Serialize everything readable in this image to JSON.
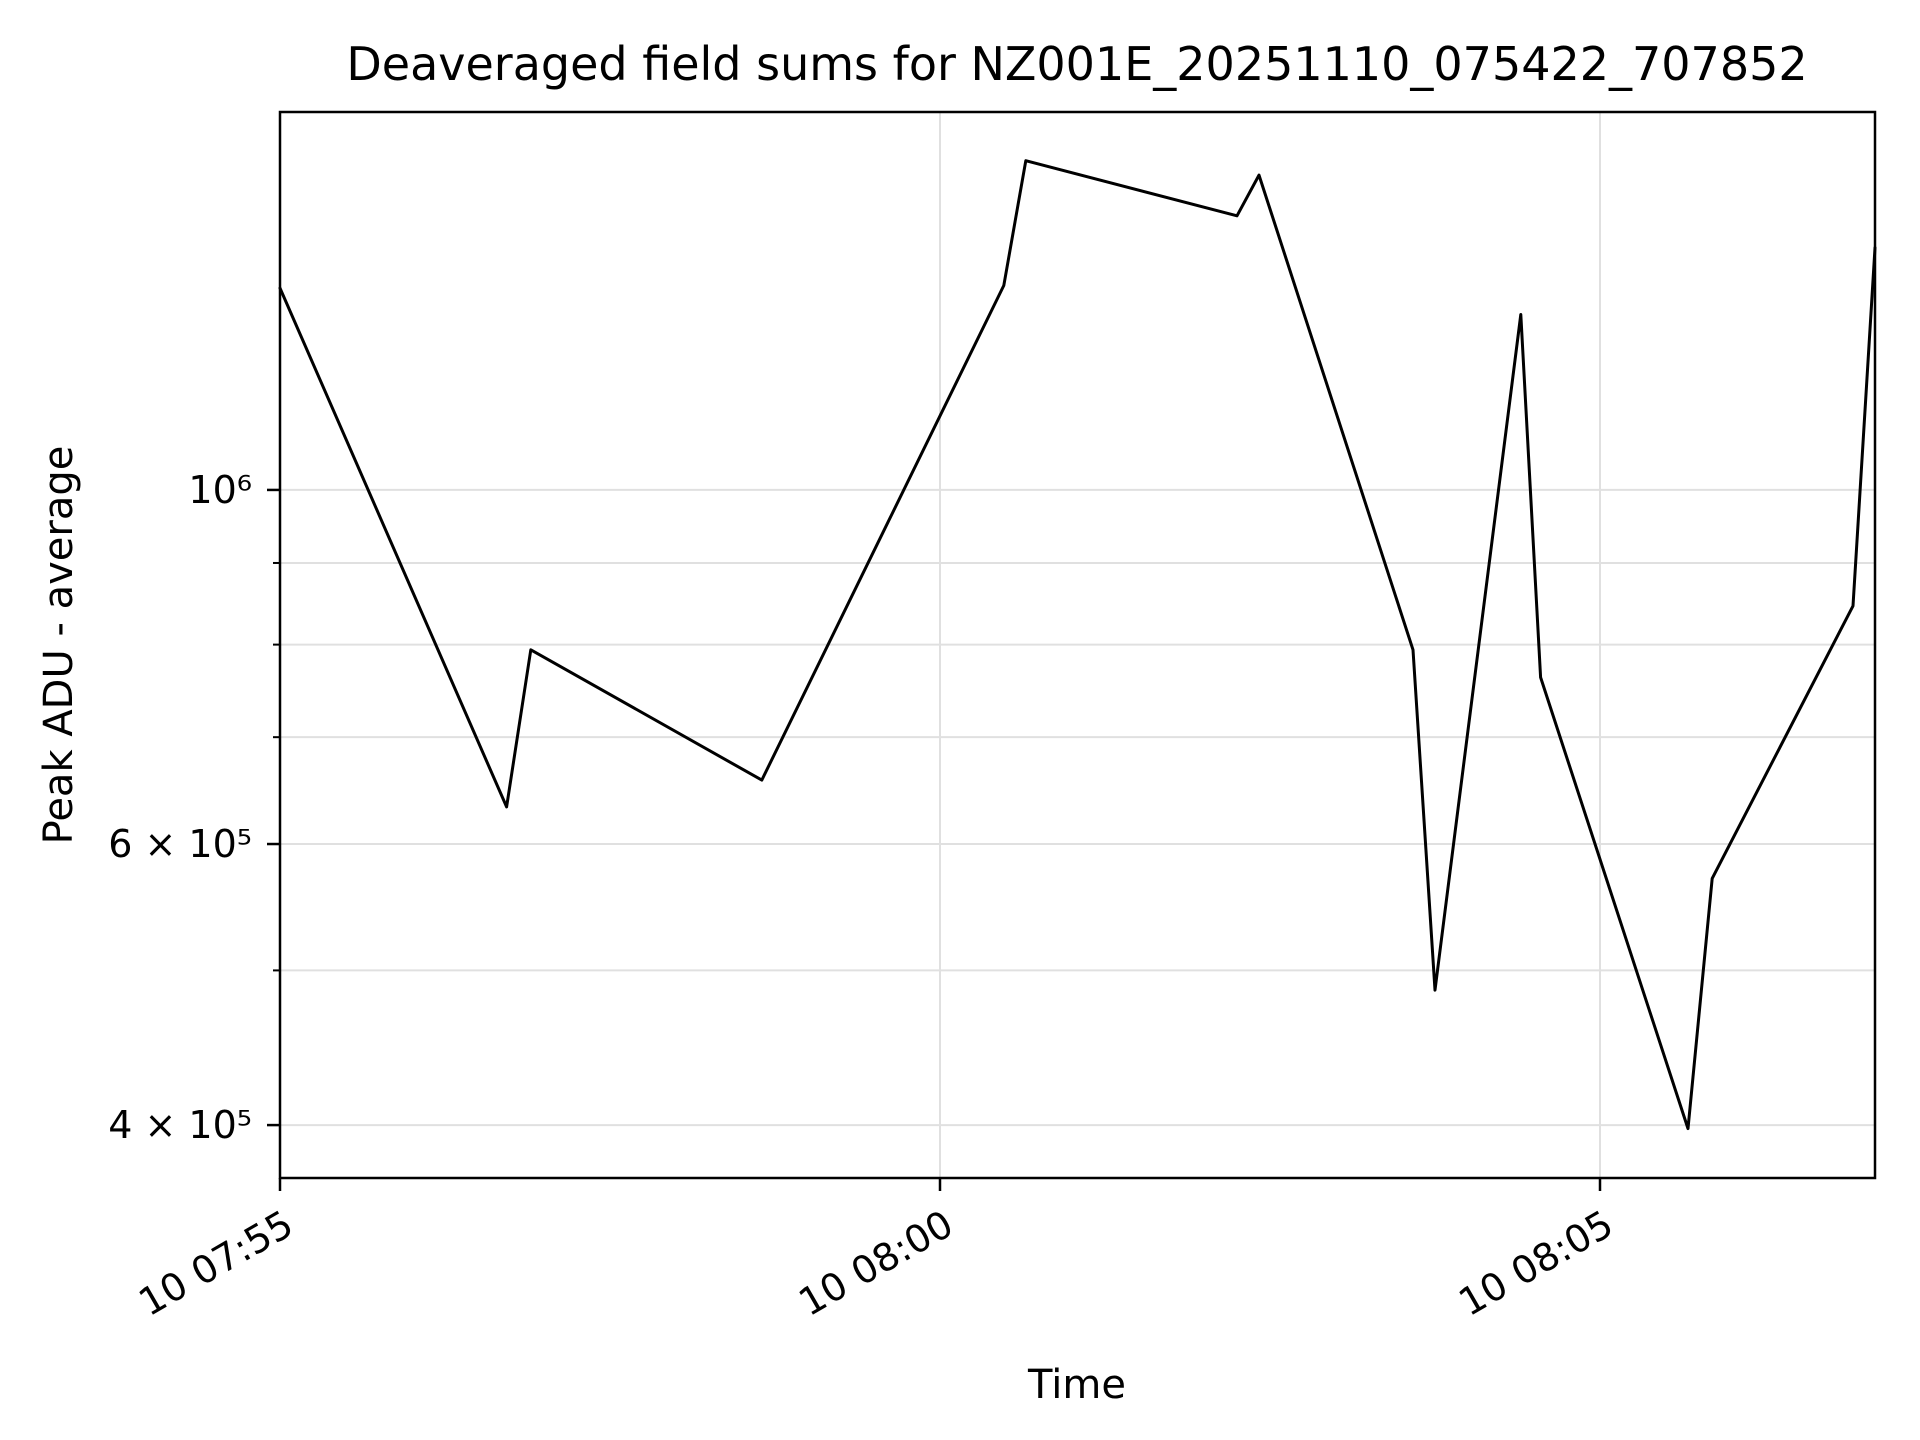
{
  "title": "Deaveraged field sums for NZ001E_20251110_075422_707852",
  "chart_data": {
    "type": "line",
    "title": "Deaveraged field sums for NZ001E_20251110_075422_707852",
    "xlabel": "Time",
    "ylabel": "Peak ADU - average",
    "x_scale": "time",
    "y_scale": "log10",
    "x_day_prefix": "10",
    "x_range": [
      "07:55:00",
      "08:07:05"
    ],
    "y_range": [
      370600,
      1725000
    ],
    "grid": true,
    "legend": null,
    "line_color": "#000000",
    "grid_color": "#e0e0e0",
    "background_color": "#ffffff",
    "x": [
      "07:55:00",
      "07:56:43",
      "07:56:54",
      "07:58:39",
      "08:00:29",
      "08:00:39",
      "08:02:15",
      "08:02:25",
      "08:03:35",
      "08:03:45",
      "08:04:24",
      "08:04:33",
      "08:05:40",
      "08:05:51",
      "08:06:55",
      "08:07:05"
    ],
    "y": [
      1338000,
      633000,
      794000,
      658000,
      1343000,
      1608000,
      1485000,
      1575000,
      794000,
      486000,
      1288000,
      763000,
      398000,
      571000,
      846000,
      1418000
    ],
    "x_ticks": [
      {
        "time": "07:55:00",
        "label": "10 07:55"
      },
      {
        "time": "08:00:00",
        "label": "10 08:00"
      },
      {
        "time": "08:05:00",
        "label": "10 08:05"
      }
    ],
    "y_ticks_major": [
      {
        "value": 1000000,
        "label": "10⁶"
      },
      {
        "value": 600000,
        "label": "6 × 10⁵"
      },
      {
        "value": 400000,
        "label": "4 × 10⁵"
      }
    ],
    "y_ticks_minor": [
      900000,
      800000,
      700000,
      500000
    ]
  }
}
